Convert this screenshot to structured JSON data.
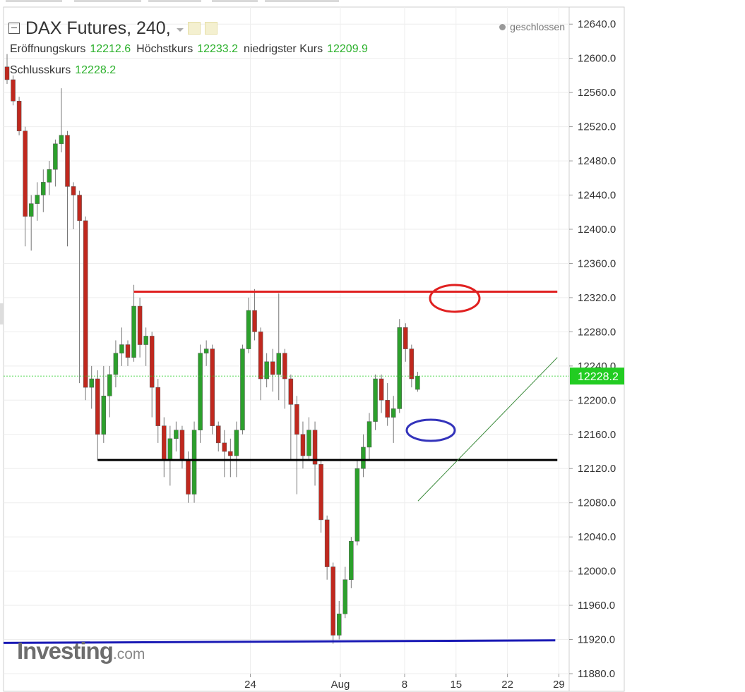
{
  "header": {
    "title": "DAX Futures, 240,",
    "status": "geschlossen",
    "ohlc": {
      "open_label": "Eröffnungskurs",
      "open": "12212.6",
      "high_label": "Höchstkurs",
      "high": "12233.2",
      "low_label": "niedrigster Kurs",
      "low": "12209.9",
      "close_label": "Schlusskurs",
      "close": "12228.2"
    }
  },
  "logo": {
    "main": "Investing",
    "suffix": ".com"
  },
  "colors": {
    "up": "#2ca02c",
    "down": "#c0281e",
    "grid": "#eeeeee",
    "price_tag": "#22cc22",
    "resistance": "#e02020",
    "support": "#000000",
    "low_line": "#1a1ab5",
    "trendline": "#3a8a3a",
    "ellipse_red": "#e02020",
    "ellipse_blue": "#3333bb"
  },
  "chart_data": {
    "type": "candlestick",
    "title": "DAX Futures, 240,",
    "y_range": [
      11880,
      12660
    ],
    "y_ticks": [
      12640,
      12600,
      12560,
      12520,
      12480,
      12440,
      12400,
      12360,
      12320,
      12280,
      12240,
      12200,
      12160,
      12120,
      12080,
      12040,
      12000,
      11960,
      11920,
      11880
    ],
    "y_tick_labels": [
      "12640.0",
      "12600.0",
      "12560.0",
      "12520.0",
      "12480.0",
      "12440.0",
      "12400.0",
      "12360.0",
      "12320.0",
      "12280.0",
      "12240.0",
      "12200.0",
      "12160.0",
      "12120.0",
      "12080.0",
      "12040.0",
      "12000.0",
      "11960.0",
      "11920.0",
      "11880.0"
    ],
    "x_range_day": [
      19.2,
      30.2
    ],
    "x_ticks": [
      {
        "day": 24,
        "label": "24"
      },
      {
        "day": 25.75,
        "label": "Aug"
      },
      {
        "day": 27,
        "label": "8"
      },
      {
        "day": 28,
        "label": "15"
      },
      {
        "day": 29,
        "label": "22"
      },
      {
        "day": 30,
        "label": "29"
      }
    ],
    "last_price": "12228.2",
    "last_value": 12228.2,
    "candles": [
      [
        12590,
        12605,
        12570,
        12575
      ],
      [
        12575,
        12580,
        12545,
        12550
      ],
      [
        12550,
        12555,
        12510,
        12515
      ],
      [
        12515,
        12520,
        12380,
        12415
      ],
      [
        12415,
        12440,
        12375,
        12430
      ],
      [
        12430,
        12455,
        12410,
        12440
      ],
      [
        12440,
        12470,
        12420,
        12455
      ],
      [
        12455,
        12480,
        12440,
        12470
      ],
      [
        12470,
        12505,
        12450,
        12500
      ],
      [
        12500,
        12565,
        12490,
        12510
      ],
      [
        12510,
        12515,
        12380,
        12450
      ],
      [
        12450,
        12455,
        12400,
        12440
      ],
      [
        12440,
        12445,
        12220,
        12410
      ],
      [
        12410,
        12415,
        12200,
        12215
      ],
      [
        12215,
        12240,
        12190,
        12225
      ],
      [
        12225,
        12235,
        12130,
        12160
      ],
      [
        12160,
        12240,
        12150,
        12205
      ],
      [
        12205,
        12240,
        12180,
        12230
      ],
      [
        12230,
        12270,
        12215,
        12255
      ],
      [
        12255,
        12285,
        12240,
        12265
      ],
      [
        12265,
        12270,
        12240,
        12250
      ],
      [
        12250,
        12335,
        12245,
        12310
      ],
      [
        12310,
        12320,
        12250,
        12265
      ],
      [
        12265,
        12285,
        12240,
        12275
      ],
      [
        12275,
        12280,
        12180,
        12215
      ],
      [
        12215,
        12225,
        12150,
        12170
      ],
      [
        12170,
        12180,
        12110,
        12130
      ],
      [
        12130,
        12170,
        12100,
        12155
      ],
      [
        12155,
        12175,
        12140,
        12165
      ],
      [
        12165,
        12170,
        12120,
        12130
      ],
      [
        12130,
        12140,
        12080,
        12090
      ],
      [
        12090,
        12175,
        12080,
        12165
      ],
      [
        12165,
        12265,
        12150,
        12255
      ],
      [
        12255,
        12270,
        12240,
        12260
      ],
      [
        12260,
        12265,
        12160,
        12170
      ],
      [
        12170,
        12175,
        12140,
        12150
      ],
      [
        12150,
        12165,
        12110,
        12140
      ],
      [
        12140,
        12155,
        12110,
        12135
      ],
      [
        12135,
        12175,
        12110,
        12165
      ],
      [
        12165,
        12265,
        12160,
        12260
      ],
      [
        12260,
        12320,
        12255,
        12305
      ],
      [
        12305,
        12330,
        12270,
        12280
      ],
      [
        12280,
        12285,
        12200,
        12225
      ],
      [
        12225,
        12255,
        12215,
        12245
      ],
      [
        12245,
        12260,
        12210,
        12230
      ],
      [
        12230,
        12325,
        12200,
        12255
      ],
      [
        12255,
        12260,
        12190,
        12225
      ],
      [
        12225,
        12230,
        12130,
        12195
      ],
      [
        12195,
        12205,
        12090,
        12160
      ],
      [
        12160,
        12175,
        12120,
        12135
      ],
      [
        12135,
        12180,
        12130,
        12165
      ],
      [
        12165,
        12175,
        12100,
        12125
      ],
      [
        12125,
        12130,
        12045,
        12060
      ],
      [
        12060,
        12065,
        11990,
        12005
      ],
      [
        12005,
        12010,
        11915,
        11925
      ],
      [
        11925,
        11965,
        11920,
        11950
      ],
      [
        11950,
        12005,
        11945,
        11990
      ],
      [
        11990,
        12040,
        11980,
        12035
      ],
      [
        12035,
        12130,
        12030,
        12120
      ],
      [
        12120,
        12160,
        12110,
        12145
      ],
      [
        12145,
        12185,
        12130,
        12175
      ],
      [
        12175,
        12230,
        12165,
        12225
      ],
      [
        12225,
        12230,
        12185,
        12200
      ],
      [
        12200,
        12220,
        12170,
        12180
      ],
      [
        12180,
        12205,
        12150,
        12190
      ],
      [
        12190,
        12295,
        12185,
        12285
      ],
      [
        12285,
        12290,
        12245,
        12260
      ],
      [
        12260,
        12265,
        12215,
        12225
      ],
      [
        12212.6,
        12233.2,
        12209.9,
        12228.2
      ]
    ],
    "annotations": {
      "resistance": {
        "value": 12327,
        "from_candle": 21,
        "to_day": 29.97
      },
      "support": {
        "value": 12130,
        "from_candle": 15,
        "to_day": 29.97
      },
      "lower_line": {
        "from_value": 11916,
        "to_value": 11919,
        "from_day": 19.2,
        "to_day": 29.93
      },
      "trendline": {
        "from_value": 12082,
        "to_value": 12250,
        "from_day": 27.26,
        "to_day": 29.97
      }
    }
  }
}
